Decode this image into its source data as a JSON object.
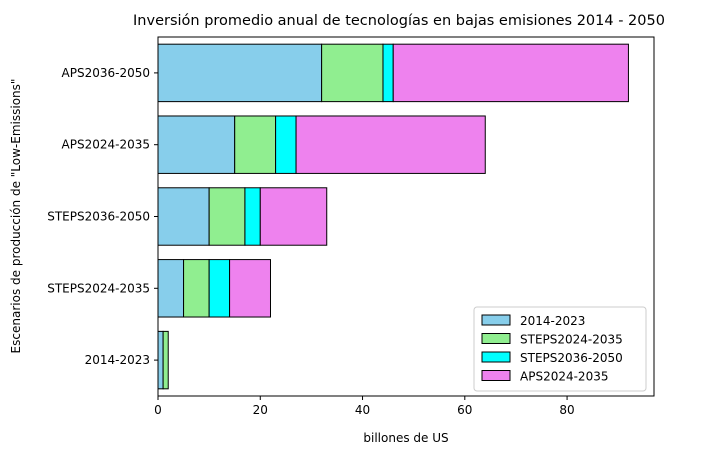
{
  "chart_data": {
    "type": "bar",
    "orientation": "horizontal",
    "stacked": true,
    "title": "Inversión promedio anual de tecnologías en bajas emisiones 2014 - 2050",
    "xlabel": "billones de US",
    "ylabel": "Escenarios de producción de \"Low-Emissions\"",
    "categories": [
      "2014-2023",
      "STEPS2024-2035",
      "STEPS2036-2050",
      "APS2024-2035",
      "APS2036-2050"
    ],
    "xlim": [
      0,
      97
    ],
    "xticks": [
      0,
      20,
      40,
      60,
      80
    ],
    "series": [
      {
        "name": "2014-2023",
        "color": "#87ceeb",
        "values": [
          1,
          5,
          10,
          15,
          32
        ]
      },
      {
        "name": "STEPS2024-2035",
        "color": "#90ee90",
        "values": [
          1,
          5,
          7,
          8,
          12
        ]
      },
      {
        "name": "STEPS2036-2050",
        "color": "#00ffff",
        "values": [
          0,
          4,
          3,
          4,
          2
        ]
      },
      {
        "name": "APS2024-2035",
        "color": "#ee82ee",
        "values": [
          0,
          8,
          13,
          37,
          46
        ]
      }
    ],
    "legend_position": "lower right",
    "grid": false
  }
}
